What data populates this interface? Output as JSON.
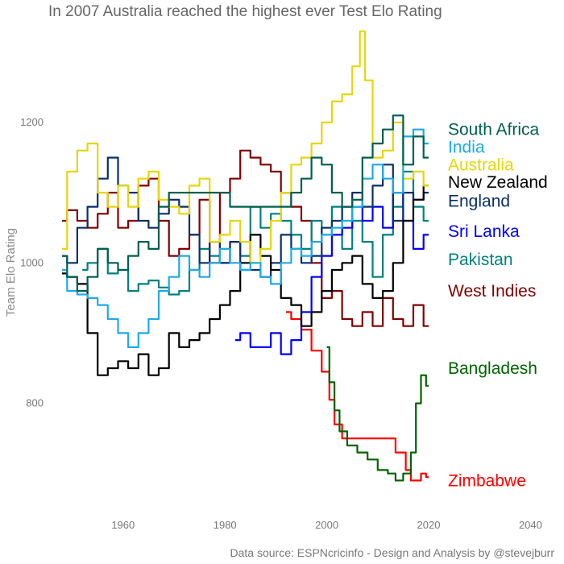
{
  "chart_data": {
    "type": "line",
    "title": "In 2007 Australia reached the highest ever Test Elo Rating",
    "xlabel": "",
    "ylabel": "Team Elo Rating",
    "caption": "Data source: ESPNcricinfo - Design and Analysis by @stevejburr",
    "xlim": [
      1945,
      2045
    ],
    "ylim": [
      640,
      1340
    ],
    "x_ticks": [
      1960,
      1980,
      2000,
      2020,
      2040
    ],
    "y_ticks": [
      800,
      1000,
      1200
    ],
    "grid": false,
    "legend": "direct labels at right end of each series",
    "series": [
      {
        "name": "Zimbabwe",
        "color": "#ff0000",
        "label_value": 690,
        "points": [
          [
            1992,
            930
          ],
          [
            1994,
            920
          ],
          [
            1996,
            905
          ],
          [
            1998,
            875
          ],
          [
            2000,
            845
          ],
          [
            2001,
            805
          ],
          [
            2002,
            770
          ],
          [
            2004,
            750
          ],
          [
            2008,
            750
          ],
          [
            2012,
            750
          ],
          [
            2015,
            730
          ],
          [
            2016,
            705
          ],
          [
            2017,
            690
          ],
          [
            2018,
            690
          ],
          [
            2019,
            700
          ],
          [
            2020,
            695
          ]
        ]
      },
      {
        "name": "Bangladesh",
        "color": "#006400",
        "label_value": 850,
        "points": [
          [
            2000,
            880
          ],
          [
            2001,
            830
          ],
          [
            2002,
            790
          ],
          [
            2003,
            760
          ],
          [
            2005,
            740
          ],
          [
            2007,
            730
          ],
          [
            2009,
            720
          ],
          [
            2011,
            705
          ],
          [
            2013,
            700
          ],
          [
            2014,
            690
          ],
          [
            2016,
            700
          ],
          [
            2017,
            730
          ],
          [
            2018,
            800
          ],
          [
            2019,
            840
          ],
          [
            2020,
            825
          ]
        ]
      },
      {
        "name": "West Indies",
        "color": "#800000",
        "label_value": 960,
        "points": [
          [
            1948,
            1060
          ],
          [
            1950,
            1075
          ],
          [
            1952,
            1060
          ],
          [
            1954,
            1050
          ],
          [
            1956,
            1070
          ],
          [
            1958,
            1100
          ],
          [
            1960,
            1050
          ],
          [
            1962,
            1060
          ],
          [
            1964,
            1110
          ],
          [
            1966,
            1120
          ],
          [
            1968,
            1060
          ],
          [
            1970,
            1010
          ],
          [
            1972,
            1020
          ],
          [
            1974,
            1040
          ],
          [
            1976,
            1090
          ],
          [
            1978,
            1000
          ],
          [
            1980,
            1100
          ],
          [
            1982,
            1120
          ],
          [
            1984,
            1160
          ],
          [
            1986,
            1150
          ],
          [
            1988,
            1140
          ],
          [
            1990,
            1130
          ],
          [
            1992,
            1100
          ],
          [
            1994,
            1080
          ],
          [
            1996,
            1060
          ],
          [
            1998,
            1000
          ],
          [
            2000,
            950
          ],
          [
            2002,
            960
          ],
          [
            2004,
            920
          ],
          [
            2006,
            910
          ],
          [
            2008,
            930
          ],
          [
            2010,
            910
          ],
          [
            2012,
            950
          ],
          [
            2014,
            920
          ],
          [
            2016,
            910
          ],
          [
            2018,
            940
          ],
          [
            2020,
            910
          ]
        ]
      },
      {
        "name": "Pakistan",
        "color": "#008080",
        "label_value": 1005,
        "points": [
          [
            1952,
            990
          ],
          [
            1954,
            1000
          ],
          [
            1956,
            1020
          ],
          [
            1958,
            985
          ],
          [
            1960,
            990
          ],
          [
            1962,
            960
          ],
          [
            1964,
            970
          ],
          [
            1966,
            975
          ],
          [
            1968,
            965
          ],
          [
            1970,
            955
          ],
          [
            1972,
            960
          ],
          [
            1974,
            990
          ],
          [
            1976,
            1020
          ],
          [
            1978,
            1010
          ],
          [
            1980,
            1000
          ],
          [
            1982,
            1030
          ],
          [
            1984,
            1010
          ],
          [
            1986,
            1080
          ],
          [
            1988,
            1050
          ],
          [
            1990,
            1070
          ],
          [
            1992,
            1060
          ],
          [
            1994,
            1040
          ],
          [
            1996,
            1020
          ],
          [
            1998,
            1060
          ],
          [
            2000,
            1040
          ],
          [
            2002,
            1080
          ],
          [
            2004,
            1020
          ],
          [
            2006,
            1060
          ],
          [
            2008,
            1030
          ],
          [
            2010,
            980
          ],
          [
            2012,
            1040
          ],
          [
            2014,
            1080
          ],
          [
            2016,
            1130
          ],
          [
            2018,
            1080
          ],
          [
            2020,
            1060
          ]
        ]
      },
      {
        "name": "Sri Lanka",
        "color": "#0000ff",
        "label_value": 1045,
        "points": [
          [
            1982,
            890
          ],
          [
            1984,
            900
          ],
          [
            1986,
            880
          ],
          [
            1988,
            880
          ],
          [
            1990,
            900
          ],
          [
            1992,
            870
          ],
          [
            1994,
            890
          ],
          [
            1996,
            930
          ],
          [
            1998,
            980
          ],
          [
            2000,
            1010
          ],
          [
            2002,
            1040
          ],
          [
            2004,
            1050
          ],
          [
            2006,
            1080
          ],
          [
            2008,
            1060
          ],
          [
            2010,
            1080
          ],
          [
            2012,
            1050
          ],
          [
            2014,
            1100
          ],
          [
            2016,
            1060
          ],
          [
            2018,
            1020
          ],
          [
            2020,
            1040
          ]
        ]
      },
      {
        "name": "England",
        "color": "#0a2f6b",
        "label_value": 1088,
        "points": [
          [
            1948,
            1010
          ],
          [
            1950,
            1000
          ],
          [
            1952,
            1050
          ],
          [
            1954,
            1080
          ],
          [
            1956,
            1120
          ],
          [
            1958,
            1150
          ],
          [
            1960,
            1110
          ],
          [
            1962,
            1100
          ],
          [
            1964,
            1060
          ],
          [
            1966,
            1050
          ],
          [
            1968,
            1070
          ],
          [
            1970,
            1090
          ],
          [
            1972,
            1080
          ],
          [
            1974,
            1040
          ],
          [
            1976,
            1000
          ],
          [
            1978,
            1030
          ],
          [
            1980,
            1000
          ],
          [
            1982,
            1030
          ],
          [
            1984,
            990
          ],
          [
            1986,
            990
          ],
          [
            1988,
            980
          ],
          [
            1990,
            1000
          ],
          [
            1992,
            1040
          ],
          [
            1994,
            1020
          ],
          [
            1996,
            1000
          ],
          [
            1998,
            1010
          ],
          [
            2000,
            1050
          ],
          [
            2002,
            1060
          ],
          [
            2004,
            1080
          ],
          [
            2006,
            1100
          ],
          [
            2008,
            1080
          ],
          [
            2010,
            1110
          ],
          [
            2012,
            1140
          ],
          [
            2014,
            1060
          ],
          [
            2016,
            1100
          ],
          [
            2018,
            1090
          ],
          [
            2020,
            1100
          ]
        ]
      },
      {
        "name": "New Zealand",
        "color": "#000000",
        "label_value": 1115,
        "points": [
          [
            1948,
            985
          ],
          [
            1950,
            980
          ],
          [
            1952,
            970
          ],
          [
            1954,
            900
          ],
          [
            1956,
            840
          ],
          [
            1958,
            850
          ],
          [
            1960,
            860
          ],
          [
            1962,
            850
          ],
          [
            1964,
            870
          ],
          [
            1966,
            840
          ],
          [
            1968,
            850
          ],
          [
            1970,
            900
          ],
          [
            1972,
            880
          ],
          [
            1974,
            890
          ],
          [
            1976,
            900
          ],
          [
            1978,
            920
          ],
          [
            1980,
            940
          ],
          [
            1982,
            960
          ],
          [
            1984,
            1000
          ],
          [
            1986,
            1040
          ],
          [
            1988,
            1010
          ],
          [
            1990,
            990
          ],
          [
            1992,
            950
          ],
          [
            1994,
            940
          ],
          [
            1996,
            910
          ],
          [
            1998,
            930
          ],
          [
            2000,
            960
          ],
          [
            2002,
            990
          ],
          [
            2004,
            1000
          ],
          [
            2006,
            1010
          ],
          [
            2008,
            970
          ],
          [
            2010,
            950
          ],
          [
            2012,
            960
          ],
          [
            2014,
            1000
          ],
          [
            2016,
            1060
          ],
          [
            2018,
            1090
          ],
          [
            2020,
            1110
          ]
        ]
      },
      {
        "name": "Australia",
        "color": "#e6d60a",
        "label_value": 1140,
        "points": [
          [
            1948,
            1020
          ],
          [
            1950,
            1130
          ],
          [
            1952,
            1160
          ],
          [
            1954,
            1170
          ],
          [
            1956,
            1100
          ],
          [
            1958,
            1080
          ],
          [
            1960,
            1110
          ],
          [
            1962,
            1080
          ],
          [
            1964,
            1120
          ],
          [
            1966,
            1130
          ],
          [
            1968,
            1090
          ],
          [
            1970,
            1080
          ],
          [
            1972,
            1070
          ],
          [
            1974,
            1110
          ],
          [
            1976,
            1120
          ],
          [
            1978,
            1030
          ],
          [
            1980,
            1040
          ],
          [
            1982,
            1060
          ],
          [
            1984,
            1030
          ],
          [
            1986,
            1000
          ],
          [
            1988,
            1020
          ],
          [
            1990,
            1060
          ],
          [
            1992,
            1100
          ],
          [
            1994,
            1140
          ],
          [
            1996,
            1150
          ],
          [
            1998,
            1170
          ],
          [
            2000,
            1200
          ],
          [
            2002,
            1230
          ],
          [
            2004,
            1240
          ],
          [
            2006,
            1280
          ],
          [
            2007,
            1330
          ],
          [
            2008,
            1260
          ],
          [
            2010,
            1150
          ],
          [
            2012,
            1160
          ],
          [
            2014,
            1200
          ],
          [
            2016,
            1120
          ],
          [
            2018,
            1130
          ],
          [
            2020,
            1110
          ]
        ]
      },
      {
        "name": "India",
        "color": "#1eaae6",
        "label_value": 1165,
        "points": [
          [
            1948,
            990
          ],
          [
            1950,
            960
          ],
          [
            1952,
            955
          ],
          [
            1954,
            950
          ],
          [
            1956,
            940
          ],
          [
            1958,
            920
          ],
          [
            1960,
            900
          ],
          [
            1962,
            880
          ],
          [
            1964,
            900
          ],
          [
            1966,
            920
          ],
          [
            1968,
            960
          ],
          [
            1970,
            980
          ],
          [
            1972,
            1010
          ],
          [
            1974,
            990
          ],
          [
            1976,
            980
          ],
          [
            1978,
            1000
          ],
          [
            1980,
            1020
          ],
          [
            1982,
            1000
          ],
          [
            1984,
            990
          ],
          [
            1986,
            1000
          ],
          [
            1988,
            980
          ],
          [
            1990,
            970
          ],
          [
            1992,
            1000
          ],
          [
            1994,
            1020
          ],
          [
            1996,
            1010
          ],
          [
            1998,
            1030
          ],
          [
            2000,
            1040
          ],
          [
            2002,
            1050
          ],
          [
            2004,
            1060
          ],
          [
            2006,
            1080
          ],
          [
            2008,
            1120
          ],
          [
            2010,
            1140
          ],
          [
            2012,
            1120
          ],
          [
            2014,
            1100
          ],
          [
            2016,
            1180
          ],
          [
            2018,
            1190
          ],
          [
            2020,
            1170
          ]
        ]
      },
      {
        "name": "South Africa",
        "color": "#005f4f",
        "label_value": 1190,
        "points": [
          [
            1948,
            1010
          ],
          [
            1950,
            980
          ],
          [
            1952,
            960
          ],
          [
            1954,
            980
          ],
          [
            1956,
            1020
          ],
          [
            1958,
            1000
          ],
          [
            1960,
            990
          ],
          [
            1962,
            1010
          ],
          [
            1964,
            1030
          ],
          [
            1966,
            1020
          ],
          [
            1968,
            1080
          ],
          [
            1970,
            1100
          ],
          [
            1992,
            1080
          ],
          [
            1994,
            1100
          ],
          [
            1996,
            1120
          ],
          [
            1998,
            1150
          ],
          [
            2000,
            1140
          ],
          [
            2002,
            1100
          ],
          [
            2004,
            1080
          ],
          [
            2006,
            1090
          ],
          [
            2008,
            1150
          ],
          [
            2010,
            1170
          ],
          [
            2012,
            1190
          ],
          [
            2014,
            1210
          ],
          [
            2016,
            1140
          ],
          [
            2018,
            1180
          ],
          [
            2020,
            1150
          ]
        ]
      }
    ]
  }
}
